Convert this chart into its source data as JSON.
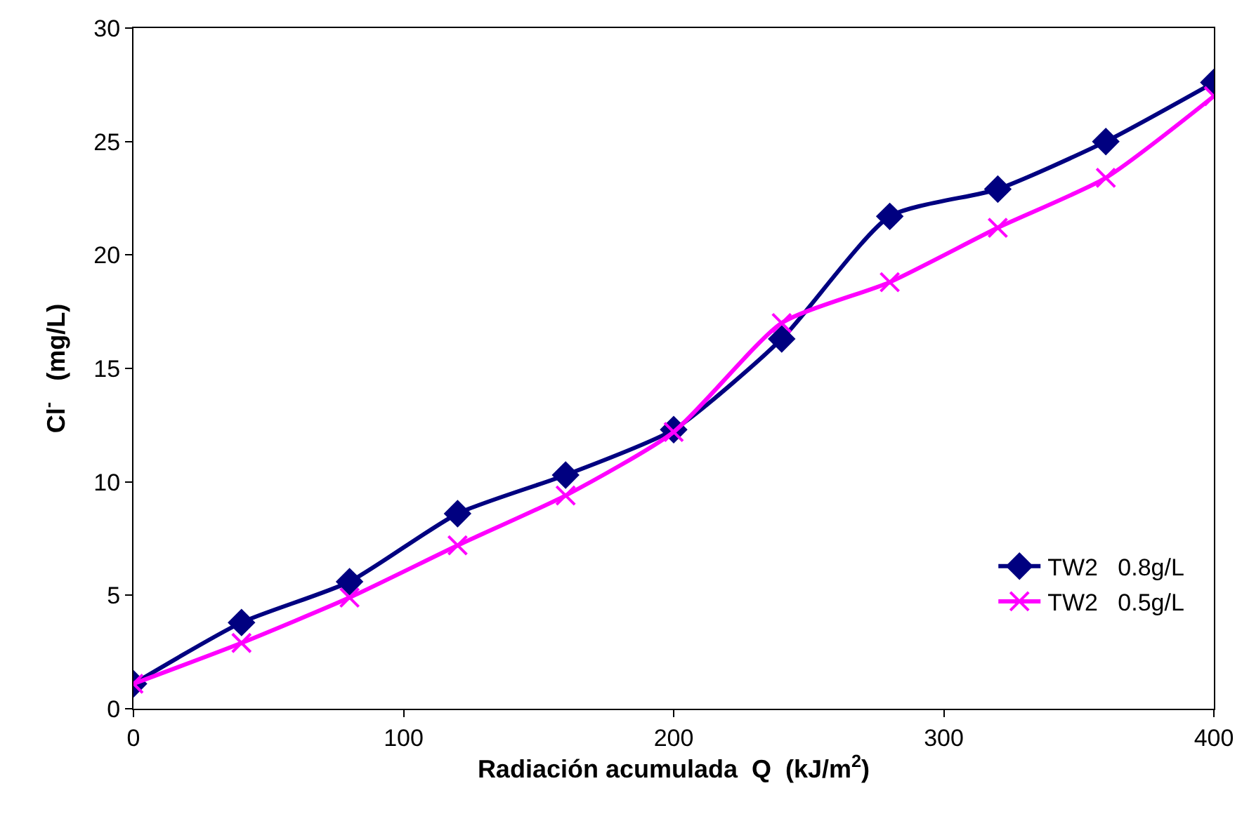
{
  "chart_data": {
    "type": "line",
    "xlabel": "Radiación acumulada  Q  (kJ/m$^{2}$)",
    "ylabel": "Cl$^{-}$   (mg/L)",
    "x": [
      0,
      40,
      80,
      120,
      160,
      200,
      240,
      280,
      320,
      360,
      400
    ],
    "series": [
      {
        "name": "TW2   0.8g/L",
        "color": "#000080",
        "marker": "diamond",
        "values": [
          1.1,
          3.8,
          5.6,
          8.6,
          10.3,
          12.3,
          16.3,
          21.7,
          22.9,
          25.0,
          27.6
        ]
      },
      {
        "name": "TW2   0.5g/L",
        "color": "#ff00ff",
        "marker": "cross",
        "values": [
          1.1,
          2.9,
          4.9,
          7.2,
          9.4,
          12.2,
          17.0,
          18.8,
          21.2,
          23.4,
          27.0
        ]
      }
    ],
    "xlim": [
      0,
      400
    ],
    "xticks": [
      0,
      100,
      200,
      300,
      400
    ],
    "ylim": [
      0,
      30
    ],
    "yticks": [
      0,
      5,
      10,
      15,
      20,
      25,
      30
    ],
    "legend": "bottom right",
    "line_style": "solid"
  }
}
